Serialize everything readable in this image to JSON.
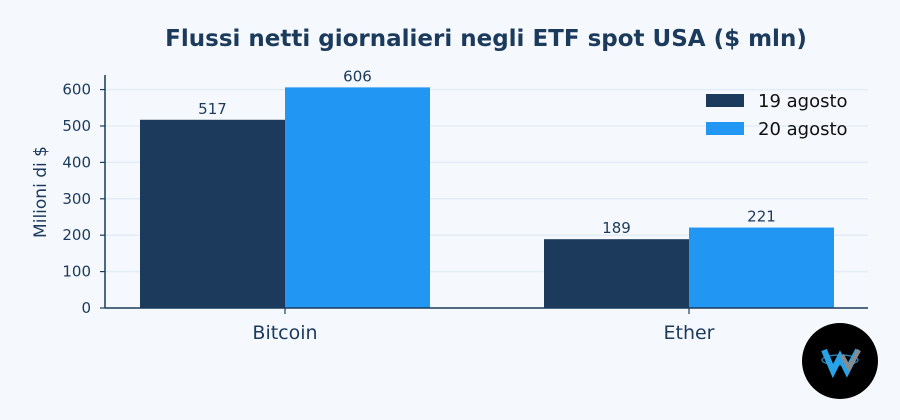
{
  "chart_data": {
    "type": "bar",
    "title": "Flussi netti giornalieri negli ETF spot USA ($ mln)",
    "ylabel": "Milioni di $",
    "xlabel": "",
    "categories": [
      "Bitcoin",
      "Ether"
    ],
    "series": [
      {
        "name": "19 agosto",
        "values": [
          517,
          189
        ],
        "color": "#1b3a5c"
      },
      {
        "name": "20 agosto",
        "values": [
          606,
          221
        ],
        "color": "#2196f3"
      }
    ],
    "ylim": [
      0,
      640
    ],
    "yticks": [
      0,
      100,
      200,
      300,
      400,
      500,
      600
    ],
    "grid": true,
    "legend_position": "top-right"
  },
  "colors": {
    "background": "#f5f8fc",
    "text": "#1b3a5c",
    "grid": "#e3edf7"
  },
  "logo": {
    "icon": "brand-w-logo-icon"
  }
}
